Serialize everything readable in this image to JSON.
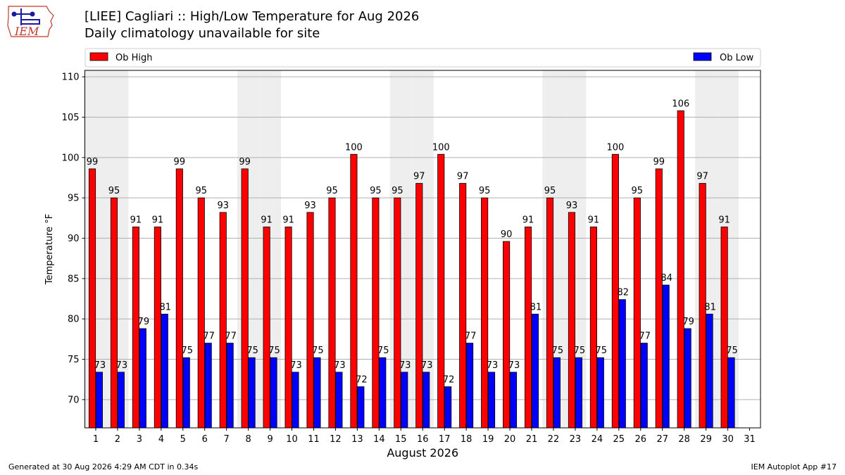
{
  "header": {
    "title": "[LIEE] Cagliari :: High/Low Temperature for Aug 2026",
    "subtitle": "Daily climatology unavailable for site",
    "logo_text": "IEM"
  },
  "footer": {
    "left": "Generated at 30 Aug 2026 4:29 AM CDT in 0.34s",
    "right": "IEM Autoplot App #17"
  },
  "colors": {
    "high": "#ff0000",
    "low": "#0000ff",
    "weekend_shade": "#eeeeee",
    "grid": "#b0b0b0",
    "logo": "#c0392b",
    "logo_dark": "#1a1aa0"
  },
  "chart_data": {
    "type": "bar",
    "xlabel": "August 2026",
    "ylabel": "Temperature °F",
    "ylim": [
      66.5,
      110.8
    ],
    "yticks": [
      70,
      75,
      80,
      85,
      90,
      95,
      100,
      105,
      110
    ],
    "grid": true,
    "legend": "top",
    "categories": [
      "1",
      "2",
      "3",
      "4",
      "5",
      "6",
      "7",
      "8",
      "9",
      "10",
      "11",
      "12",
      "13",
      "14",
      "15",
      "16",
      "17",
      "18",
      "19",
      "20",
      "21",
      "22",
      "23",
      "24",
      "25",
      "26",
      "27",
      "28",
      "29",
      "30",
      "31"
    ],
    "shaded_days": [
      1,
      2,
      8,
      9,
      15,
      16,
      22,
      23,
      29,
      30
    ],
    "series": [
      {
        "name": "Ob High",
        "values": [
          98.6,
          95,
          91.4,
          91.4,
          98.6,
          95,
          93.2,
          98.6,
          91.4,
          91.4,
          93.2,
          95,
          100.4,
          95,
          95,
          96.8,
          100.4,
          96.8,
          95,
          89.6,
          91.4,
          95,
          93.2,
          91.4,
          100.4,
          95,
          98.6,
          105.8,
          96.8,
          91.4,
          null
        ],
        "labels": [
          "99",
          "95",
          "91",
          "91",
          "99",
          "95",
          "93",
          "99",
          "91",
          "91",
          "93",
          "95",
          "100",
          "95",
          "95",
          "97",
          "100",
          "97",
          "95",
          "90",
          "91",
          "95",
          "93",
          "91",
          "100",
          "95",
          "99",
          "106",
          "97",
          "91",
          ""
        ]
      },
      {
        "name": "Ob Low",
        "values": [
          73.4,
          73.4,
          78.8,
          80.6,
          75.2,
          77,
          77,
          75.2,
          75.2,
          73.4,
          75.2,
          73.4,
          71.6,
          75.2,
          73.4,
          73.4,
          71.6,
          77,
          73.4,
          73.4,
          80.6,
          75.2,
          75.2,
          75.2,
          82.4,
          77,
          84.2,
          78.8,
          80.6,
          75.2,
          null
        ],
        "labels": [
          "73",
          "73",
          "79",
          "81",
          "75",
          "77",
          "77",
          "75",
          "75",
          "73",
          "75",
          "73",
          "72",
          "75",
          "73",
          "73",
          "72",
          "77",
          "73",
          "73",
          "81",
          "75",
          "75",
          "75",
          "82",
          "77",
          "84",
          "79",
          "81",
          "75",
          ""
        ]
      }
    ]
  }
}
